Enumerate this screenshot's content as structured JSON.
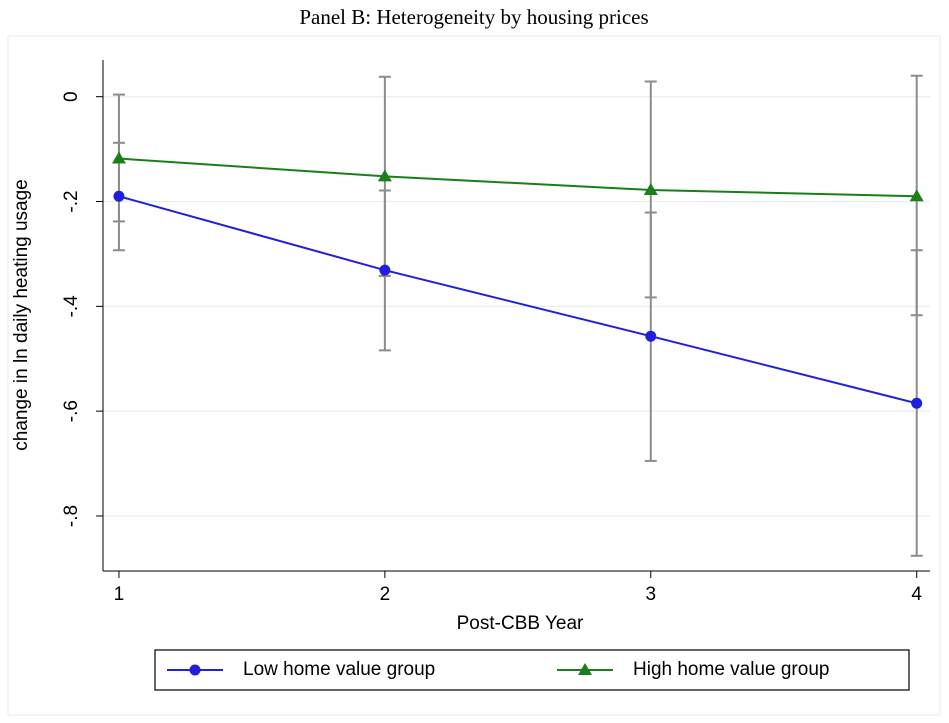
{
  "chart_data": {
    "type": "line",
    "title": "Panel B: Heterogeneity by housing prices",
    "xlabel": "Post-CBB Year",
    "ylabel": "change in ln daily heating usage",
    "x": [
      1,
      2,
      3,
      4
    ],
    "series": [
      {
        "name": "Low home value group",
        "color": "#1f1fdc",
        "marker": "circle",
        "values": [
          -0.19,
          -0.331,
          -0.457,
          -0.585
        ],
        "lower": [
          -0.293,
          -0.484,
          -0.695,
          -0.876
        ],
        "upper": [
          -0.088,
          -0.179,
          -0.221,
          -0.293
        ]
      },
      {
        "name": "High home value group",
        "color": "#1a7f1a",
        "marker": "triangle",
        "values": [
          -0.118,
          -0.152,
          -0.178,
          -0.19
        ],
        "lower": [
          -0.238,
          -0.342,
          -0.383,
          -0.417
        ],
        "upper": [
          0.004,
          0.038,
          0.029,
          0.04
        ]
      }
    ],
    "error_color": "#8c8c8c",
    "xlim": [
      0.94,
      4.05
    ],
    "xticks": [
      1,
      2,
      3,
      4
    ],
    "ylim": [
      -0.905,
      0.07
    ],
    "yticks": [
      0,
      {
        "value": -0.2,
        "label": "-.2"
      },
      {
        "value": -0.4,
        "label": "-.4"
      },
      {
        "value": -0.6,
        "label": "-.6"
      },
      {
        "value": -0.8,
        "label": "-.8"
      }
    ],
    "grid": true,
    "legend": "bottom"
  }
}
